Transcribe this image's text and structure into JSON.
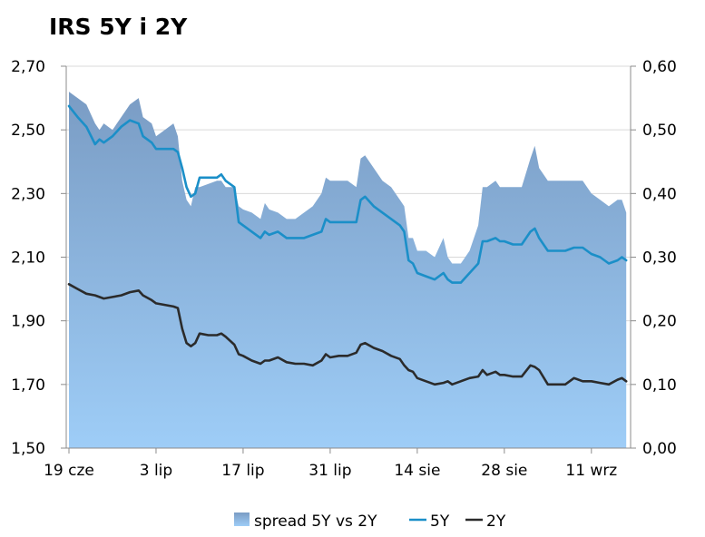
{
  "chart_data": {
    "type": "area+line",
    "title": "IRS 5Y i 2Y",
    "x_tick_labels": [
      "19 cze",
      "3 lip",
      "17 lip",
      "31 lip",
      "14 sie",
      "28 sie",
      "11 wrz"
    ],
    "x_tick_positions": [
      0,
      10,
      20,
      30,
      40,
      50,
      60
    ],
    "x_max": 64.5,
    "y_left": {
      "min": 1.5,
      "max": 2.7,
      "step": 0.2,
      "tick_labels": [
        "1,50",
        "1,70",
        "1,90",
        "2,10",
        "2,30",
        "2,50",
        "2,70"
      ]
    },
    "y_right": {
      "min": 0.0,
      "max": 0.6,
      "step": 0.1,
      "tick_labels": [
        "0,00",
        "0,10",
        "0,20",
        "0,30",
        "0,40",
        "0,50",
        "0,60"
      ]
    },
    "grid": true,
    "legend_position": "bottom",
    "colors": {
      "spread_top": "#7a9cc4",
      "spread_bottom": "#9ecdf7",
      "line_5y": "#1b8fc8",
      "line_2y": "#2b2b2b",
      "grid": "#d9d9d9",
      "axis": "#8c8c8c"
    },
    "series": [
      {
        "name": "spread 5Y vs 2Y",
        "kind": "area",
        "axis": "right",
        "points": [
          [
            0,
            0.56
          ],
          [
            1,
            0.55
          ],
          [
            2,
            0.54
          ],
          [
            3,
            0.51
          ],
          [
            3.5,
            0.5
          ],
          [
            4,
            0.51
          ],
          [
            5,
            0.5
          ],
          [
            6,
            0.52
          ],
          [
            7,
            0.54
          ],
          [
            8,
            0.55
          ],
          [
            8.5,
            0.52
          ],
          [
            9.5,
            0.51
          ],
          [
            10,
            0.49
          ],
          [
            11,
            0.5
          ],
          [
            12,
            0.51
          ],
          [
            12.5,
            0.49
          ],
          [
            13,
            0.42
          ],
          [
            13.5,
            0.39
          ],
          [
            14,
            0.38
          ],
          [
            14.5,
            0.41
          ],
          [
            15,
            0.41
          ],
          [
            16,
            0.415
          ],
          [
            17,
            0.42
          ],
          [
            17.5,
            0.42
          ],
          [
            18,
            0.41
          ],
          [
            19,
            0.41
          ],
          [
            19.5,
            0.38
          ],
          [
            20,
            0.375
          ],
          [
            21,
            0.37
          ],
          [
            22,
            0.36
          ],
          [
            22.5,
            0.385
          ],
          [
            23,
            0.375
          ],
          [
            24,
            0.37
          ],
          [
            25,
            0.36
          ],
          [
            26,
            0.36
          ],
          [
            27,
            0.37
          ],
          [
            28,
            0.38
          ],
          [
            29,
            0.4
          ],
          [
            29.5,
            0.425
          ],
          [
            30,
            0.42
          ],
          [
            31,
            0.42
          ],
          [
            32,
            0.42
          ],
          [
            33,
            0.41
          ],
          [
            33.5,
            0.455
          ],
          [
            34,
            0.46
          ],
          [
            35,
            0.44
          ],
          [
            36,
            0.42
          ],
          [
            37,
            0.41
          ],
          [
            38,
            0.39
          ],
          [
            38.5,
            0.38
          ],
          [
            39,
            0.33
          ],
          [
            39.5,
            0.33
          ],
          [
            40,
            0.31
          ],
          [
            41,
            0.31
          ],
          [
            42,
            0.3
          ],
          [
            43,
            0.33
          ],
          [
            43.5,
            0.3
          ],
          [
            44,
            0.29
          ],
          [
            45,
            0.29
          ],
          [
            46,
            0.31
          ],
          [
            47,
            0.35
          ],
          [
            47.5,
            0.41
          ],
          [
            48,
            0.41
          ],
          [
            49,
            0.42
          ],
          [
            49.5,
            0.41
          ],
          [
            50,
            0.41
          ],
          [
            51,
            0.41
          ],
          [
            52,
            0.41
          ],
          [
            53,
            0.455
          ],
          [
            53.5,
            0.475
          ],
          [
            54,
            0.44
          ],
          [
            55,
            0.42
          ],
          [
            56,
            0.42
          ],
          [
            57,
            0.42
          ],
          [
            58,
            0.42
          ],
          [
            59,
            0.42
          ],
          [
            60,
            0.4
          ],
          [
            61,
            0.39
          ],
          [
            62,
            0.38
          ],
          [
            63,
            0.39
          ],
          [
            63.5,
            0.39
          ],
          [
            64,
            0.37
          ]
        ]
      },
      {
        "name": "5Y",
        "kind": "line",
        "axis": "left",
        "points": [
          [
            0,
            2.575
          ],
          [
            1,
            2.54
          ],
          [
            2,
            2.51
          ],
          [
            3,
            2.455
          ],
          [
            3.5,
            2.47
          ],
          [
            4,
            2.46
          ],
          [
            5,
            2.48
          ],
          [
            6,
            2.51
          ],
          [
            7,
            2.53
          ],
          [
            8,
            2.52
          ],
          [
            8.5,
            2.48
          ],
          [
            9.5,
            2.46
          ],
          [
            10,
            2.44
          ],
          [
            11,
            2.44
          ],
          [
            12,
            2.44
          ],
          [
            12.5,
            2.43
          ],
          [
            13,
            2.38
          ],
          [
            13.5,
            2.32
          ],
          [
            14,
            2.29
          ],
          [
            14.5,
            2.3
          ],
          [
            15,
            2.35
          ],
          [
            16,
            2.35
          ],
          [
            17,
            2.35
          ],
          [
            17.5,
            2.36
          ],
          [
            18,
            2.34
          ],
          [
            19,
            2.32
          ],
          [
            19.5,
            2.21
          ],
          [
            20,
            2.2
          ],
          [
            21,
            2.18
          ],
          [
            22,
            2.16
          ],
          [
            22.5,
            2.18
          ],
          [
            23,
            2.17
          ],
          [
            24,
            2.18
          ],
          [
            25,
            2.16
          ],
          [
            26,
            2.16
          ],
          [
            27,
            2.16
          ],
          [
            28,
            2.17
          ],
          [
            29,
            2.18
          ],
          [
            29.5,
            2.22
          ],
          [
            30,
            2.21
          ],
          [
            31,
            2.21
          ],
          [
            32,
            2.21
          ],
          [
            33,
            2.21
          ],
          [
            33.5,
            2.28
          ],
          [
            34,
            2.29
          ],
          [
            35,
            2.26
          ],
          [
            36,
            2.24
          ],
          [
            37,
            2.22
          ],
          [
            38,
            2.2
          ],
          [
            38.5,
            2.18
          ],
          [
            39,
            2.09
          ],
          [
            39.5,
            2.08
          ],
          [
            40,
            2.05
          ],
          [
            41,
            2.04
          ],
          [
            42,
            2.03
          ],
          [
            43,
            2.05
          ],
          [
            43.5,
            2.03
          ],
          [
            44,
            2.02
          ],
          [
            45,
            2.02
          ],
          [
            46,
            2.05
          ],
          [
            47,
            2.08
          ],
          [
            47.5,
            2.15
          ],
          [
            48,
            2.15
          ],
          [
            49,
            2.16
          ],
          [
            49.5,
            2.15
          ],
          [
            50,
            2.15
          ],
          [
            51,
            2.14
          ],
          [
            52,
            2.14
          ],
          [
            53,
            2.18
          ],
          [
            53.5,
            2.19
          ],
          [
            54,
            2.16
          ],
          [
            55,
            2.12
          ],
          [
            56,
            2.12
          ],
          [
            57,
            2.12
          ],
          [
            58,
            2.13
          ],
          [
            59,
            2.13
          ],
          [
            60,
            2.11
          ],
          [
            61,
            2.1
          ],
          [
            62,
            2.08
          ],
          [
            63,
            2.09
          ],
          [
            63.5,
            2.1
          ],
          [
            64,
            2.09
          ]
        ]
      },
      {
        "name": "2Y",
        "kind": "line",
        "axis": "left",
        "points": [
          [
            0,
            2.015
          ],
          [
            1,
            2.0
          ],
          [
            2,
            1.985
          ],
          [
            3,
            1.98
          ],
          [
            3.5,
            1.975
          ],
          [
            4,
            1.97
          ],
          [
            5,
            1.975
          ],
          [
            6,
            1.98
          ],
          [
            7,
            1.99
          ],
          [
            8,
            1.995
          ],
          [
            8.5,
            1.98
          ],
          [
            9.5,
            1.965
          ],
          [
            10,
            1.955
          ],
          [
            11,
            1.95
          ],
          [
            12,
            1.945
          ],
          [
            12.5,
            1.94
          ],
          [
            13,
            1.875
          ],
          [
            13.5,
            1.83
          ],
          [
            14,
            1.82
          ],
          [
            14.5,
            1.83
          ],
          [
            15,
            1.86
          ],
          [
            16,
            1.855
          ],
          [
            17,
            1.855
          ],
          [
            17.5,
            1.86
          ],
          [
            18,
            1.85
          ],
          [
            19,
            1.825
          ],
          [
            19.5,
            1.795
          ],
          [
            20,
            1.79
          ],
          [
            21,
            1.775
          ],
          [
            22,
            1.765
          ],
          [
            22.5,
            1.775
          ],
          [
            23,
            1.775
          ],
          [
            24,
            1.785
          ],
          [
            25,
            1.77
          ],
          [
            26,
            1.765
          ],
          [
            27,
            1.765
          ],
          [
            28,
            1.76
          ],
          [
            29,
            1.775
          ],
          [
            29.5,
            1.795
          ],
          [
            30,
            1.785
          ],
          [
            31,
            1.79
          ],
          [
            32,
            1.79
          ],
          [
            33,
            1.8
          ],
          [
            33.5,
            1.825
          ],
          [
            34,
            1.83
          ],
          [
            35,
            1.815
          ],
          [
            36,
            1.805
          ],
          [
            37,
            1.79
          ],
          [
            38,
            1.78
          ],
          [
            38.5,
            1.76
          ],
          [
            39,
            1.745
          ],
          [
            39.5,
            1.74
          ],
          [
            40,
            1.72
          ],
          [
            41,
            1.71
          ],
          [
            42,
            1.7
          ],
          [
            43,
            1.705
          ],
          [
            43.5,
            1.71
          ],
          [
            44,
            1.7
          ],
          [
            45,
            1.71
          ],
          [
            46,
            1.72
          ],
          [
            47,
            1.725
          ],
          [
            47.5,
            1.745
          ],
          [
            48,
            1.73
          ],
          [
            49,
            1.74
          ],
          [
            49.5,
            1.73
          ],
          [
            50,
            1.73
          ],
          [
            51,
            1.725
          ],
          [
            52,
            1.725
          ],
          [
            53,
            1.76
          ],
          [
            53.5,
            1.755
          ],
          [
            54,
            1.745
          ],
          [
            55,
            1.7
          ],
          [
            56,
            1.7
          ],
          [
            57,
            1.7
          ],
          [
            58,
            1.72
          ],
          [
            59,
            1.71
          ],
          [
            60,
            1.71
          ],
          [
            61,
            1.705
          ],
          [
            62,
            1.7
          ],
          [
            63,
            1.715
          ],
          [
            63.5,
            1.72
          ],
          [
            64,
            1.71
          ]
        ]
      }
    ]
  }
}
